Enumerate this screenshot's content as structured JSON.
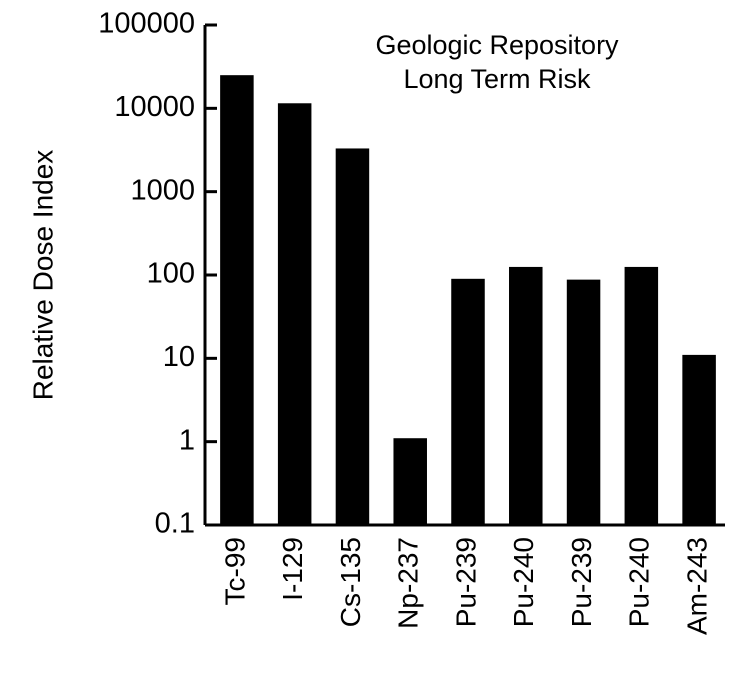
{
  "chart_data": {
    "type": "bar",
    "title_lines": [
      "Geologic Repository",
      "Long Term Risk"
    ],
    "y_label": "Relative Dose Index",
    "categories": [
      "Tc-99",
      "I-129",
      "Cs-135",
      "Np-237",
      "Pu-239",
      "Pu-240",
      "Pu-239",
      "Pu-240",
      "Am-243"
    ],
    "values": [
      25000,
      11500,
      3300,
      1.1,
      90,
      125,
      88,
      125,
      11
    ],
    "color": "#000000",
    "ylim": [
      0.1,
      100000
    ],
    "yticks": [
      0.1,
      1,
      10,
      100,
      1000,
      10000,
      100000
    ],
    "log_y": true,
    "grid": false
  }
}
